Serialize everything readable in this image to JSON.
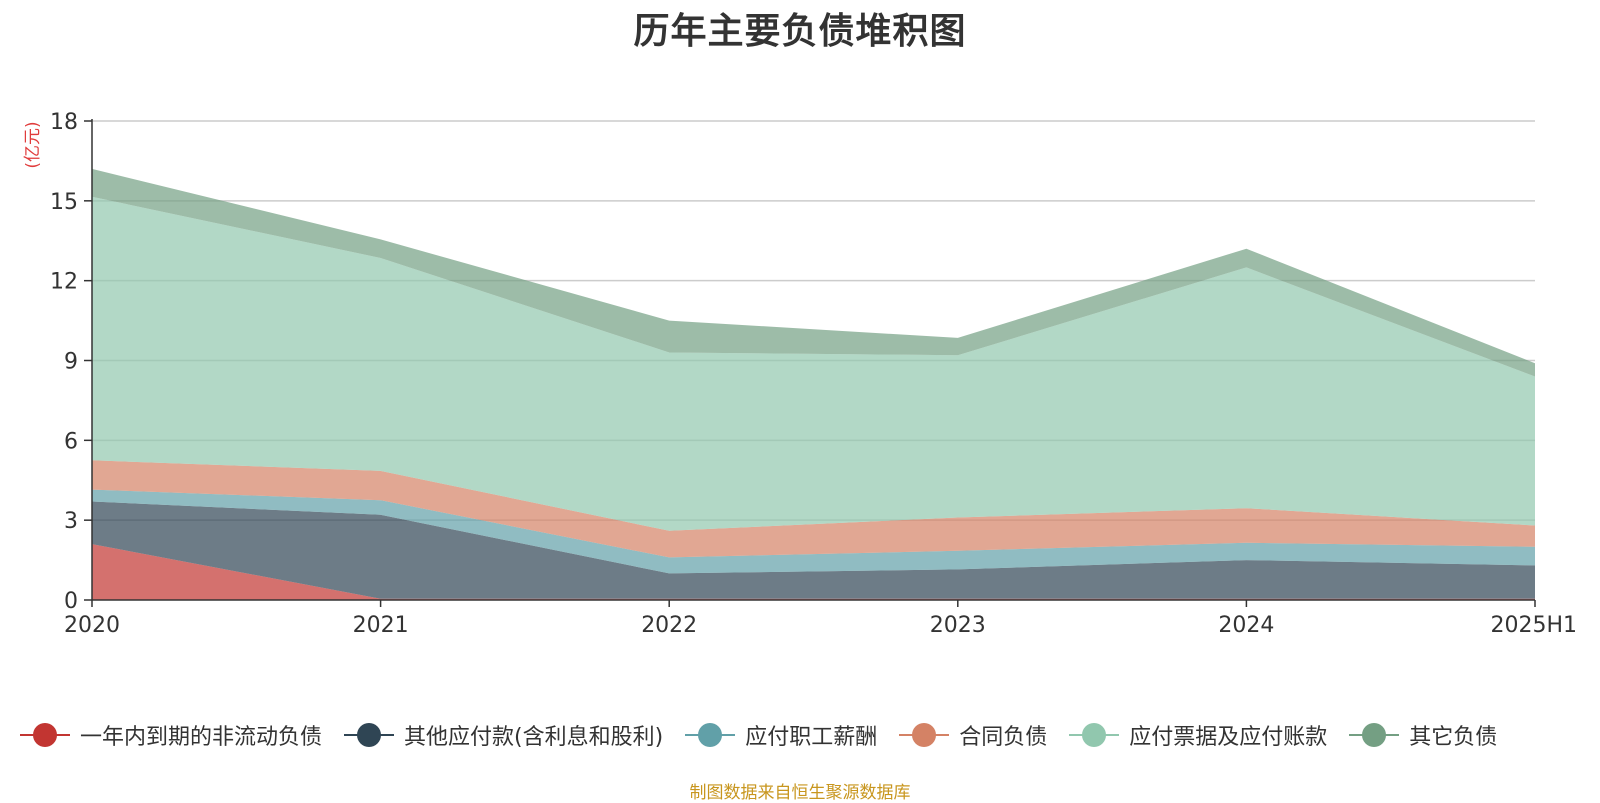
{
  "chart_data": {
    "type": "area",
    "stacked": true,
    "title": "历年主要负债堆积图",
    "unit_label": "(亿元)",
    "categories": [
      "2020",
      "2021",
      "2022",
      "2023",
      "2024",
      "2025H1"
    ],
    "y_ticks": [
      "0",
      "3",
      "6",
      "9",
      "12",
      "15",
      "18"
    ],
    "ylim": [
      0,
      18
    ],
    "grid": true,
    "legend_position": "bottom",
    "series": [
      {
        "name": "一年内到期的非流动负债",
        "color": "#c23531",
        "values": [
          2.1,
          0.05,
          0.05,
          0.05,
          0.05,
          0.05
        ]
      },
      {
        "name": "其他应付款(含利息和股利)",
        "color": "#2f4554",
        "values": [
          1.6,
          3.15,
          0.95,
          1.1,
          1.45,
          1.25
        ]
      },
      {
        "name": "应付职工薪酬",
        "color": "#61a0a8",
        "values": [
          0.45,
          0.55,
          0.6,
          0.7,
          0.65,
          0.7
        ]
      },
      {
        "name": "合同负债",
        "color": "#d48265",
        "values": [
          1.1,
          1.1,
          1.0,
          1.25,
          1.3,
          0.8
        ]
      },
      {
        "name": "应付票据及应付账款",
        "color": "#91c7ae",
        "values": [
          9.9,
          8.0,
          6.7,
          6.1,
          9.05,
          5.6
        ]
      },
      {
        "name": "其它负债",
        "color": "#749f83",
        "values": [
          1.05,
          0.7,
          1.2,
          0.65,
          0.7,
          0.5
        ]
      }
    ]
  },
  "footer": {
    "source": "制图数据来自恒生聚源数据库",
    "source_color": "#c8961e"
  },
  "colors": {
    "unit_label": "#e03c3c",
    "axis": "#333333",
    "grid": "#cccccc",
    "tick_label": "#333333"
  }
}
